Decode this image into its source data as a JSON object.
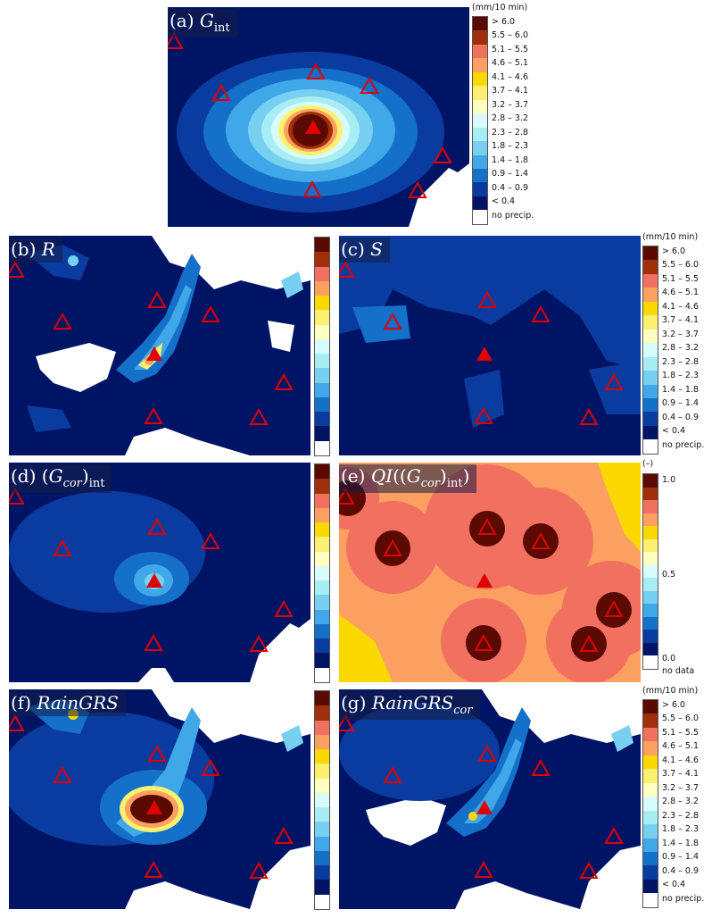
{
  "colors": [
    "#5a0a00",
    "#a0300a",
    "#f27060",
    "#fba060",
    "#fad800",
    "#fbf070",
    "#ffffc0",
    "#d8fbfb",
    "#a8ecf4",
    "#78d0f0",
    "#40a8e8",
    "#1470c8",
    "#0a3ca0",
    "#001466",
    "#ffffff"
  ],
  "intensity_legend": {
    "unit": "(mm/10 min)",
    "labels": [
      "> 6.0",
      "5.5 – 6.0",
      "5.1 – 5.5",
      "4.6 – 5.1",
      "4.1 – 4.6",
      "3.7 – 4.1",
      "3.2 – 3.7",
      "2.8 – 3.2",
      "2.3 – 2.8",
      "1.8 – 2.3",
      "1.4 – 1.8",
      "0.9 – 1.4",
      "0.4 – 0.9",
      "< 0.4",
      "no precip."
    ]
  },
  "qi_legend": {
    "unit": "(–)",
    "labels": [
      "1.0",
      "0.5",
      "0.0",
      "no data"
    ]
  },
  "panels": {
    "a": {
      "letter": "(a) ",
      "symbol": "G",
      "sub": "int"
    },
    "b": {
      "letter": "(b) ",
      "symbol": "R"
    },
    "c": {
      "letter": "(c) ",
      "symbol": "S"
    },
    "d": {
      "letter": "(d) (",
      "symbol": "G",
      "sym2": "cor",
      "close": ")",
      "sub": "int"
    },
    "e": {
      "letter": "(e) ",
      "symbol": "QI",
      "open": "((",
      "sym2": "G",
      "sym3": "cor",
      "close": ")",
      "sub": "int",
      "tail": ")"
    },
    "f": {
      "letter": "(f) ",
      "symbol": "RainGRS"
    },
    "g": {
      "letter": "(g) ",
      "symbol": "RainGRS",
      "sub": "cor"
    }
  }
}
